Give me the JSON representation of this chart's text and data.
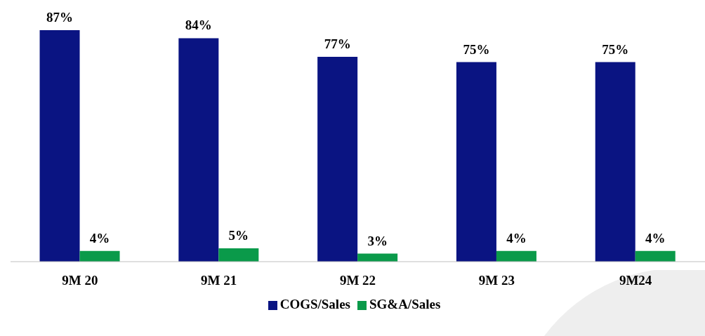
{
  "chart_data": {
    "type": "bar",
    "categories": [
      "9M 20",
      "9M 21",
      "9M 22",
      "9M 23",
      "9M24"
    ],
    "series": [
      {
        "name": "COGS/Sales",
        "color": "#0a1482",
        "values": [
          87,
          84,
          77,
          75,
          75
        ],
        "value_labels": [
          "87%",
          "84%",
          "77%",
          "75%",
          "75%"
        ]
      },
      {
        "name": "SG&A/Sales",
        "color": "#0a9a4a",
        "values": [
          4,
          5,
          3,
          4,
          4
        ],
        "value_labels": [
          "4%",
          "5%",
          "3%",
          "4%",
          "4%"
        ]
      }
    ],
    "legend": "bottom",
    "grid": false
  }
}
